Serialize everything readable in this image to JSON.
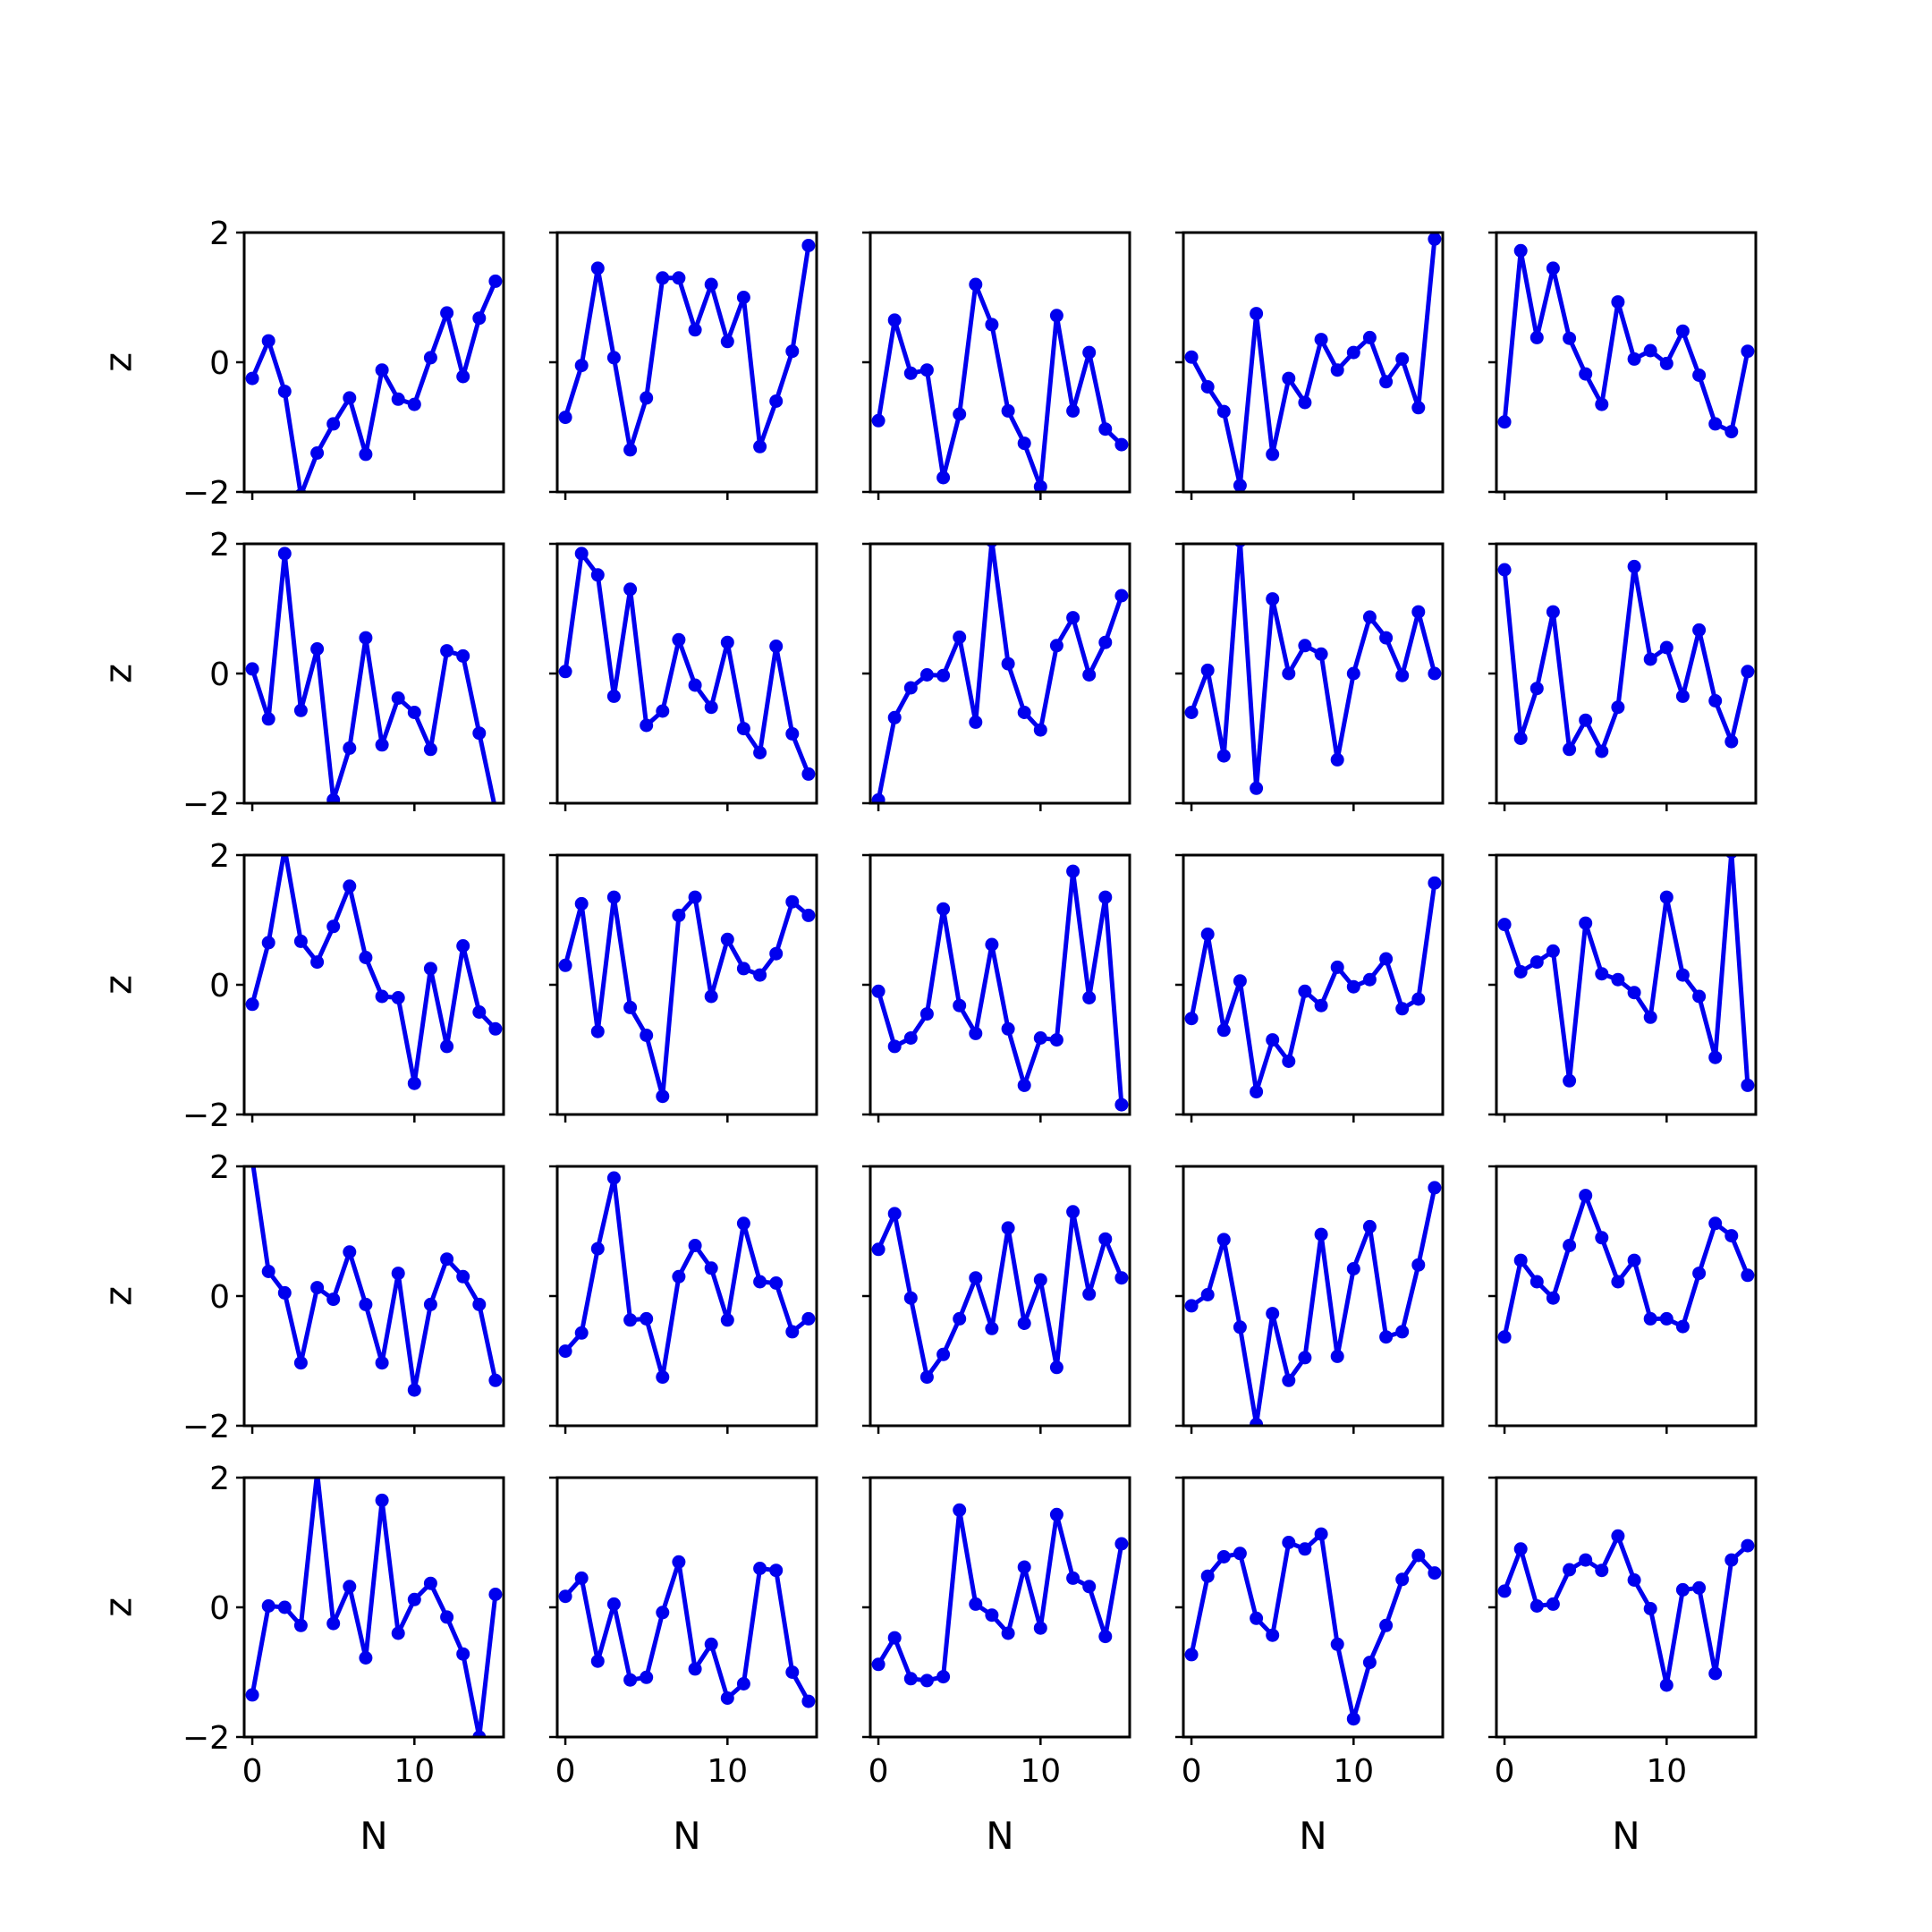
{
  "chart_data": {
    "type": "line",
    "layout": "5x5 grid of subplots sharing x and y axes",
    "xlabel": "N",
    "ylabel": "z",
    "x": [
      0,
      1,
      2,
      3,
      4,
      5,
      6,
      7,
      8,
      9,
      10,
      11,
      12,
      13,
      14,
      15
    ],
    "xlim": [
      -0.5,
      15.5
    ],
    "ylim": [
      -2,
      2
    ],
    "xticks": [
      0,
      10
    ],
    "xtick_labels": [
      "0",
      "10"
    ],
    "yticks": [
      -2,
      0,
      2
    ],
    "ytick_labels": [
      "−2",
      "0",
      "2"
    ],
    "grid": false,
    "legend": "none",
    "color": "#0000ee",
    "marker": "circle",
    "panels": [
      {
        "row": 1,
        "col": 1,
        "values": [
          -0.25,
          0.33,
          -0.45,
          -2.05,
          -1.4,
          -0.95,
          -0.55,
          -1.42,
          -0.12,
          -0.57,
          -0.65,
          0.07,
          0.76,
          -0.22,
          0.68,
          1.25
        ]
      },
      {
        "row": 1,
        "col": 2,
        "values": [
          -0.85,
          -0.05,
          1.45,
          0.07,
          -1.35,
          -0.55,
          1.3,
          1.3,
          0.5,
          1.2,
          0.32,
          1.0,
          -1.3,
          -0.6,
          0.17,
          1.8
        ]
      },
      {
        "row": 1,
        "col": 3,
        "values": [
          -0.9,
          0.65,
          -0.17,
          -0.12,
          -1.78,
          -0.8,
          1.2,
          0.58,
          -0.75,
          -1.25,
          -1.92,
          0.72,
          -0.75,
          0.15,
          -1.03,
          -1.27
        ]
      },
      {
        "row": 1,
        "col": 4,
        "values": [
          0.08,
          -0.38,
          -0.76,
          -1.9,
          0.75,
          -1.42,
          -0.25,
          -0.62,
          0.35,
          -0.12,
          0.15,
          0.38,
          -0.3,
          0.05,
          -0.7,
          1.9
        ]
      },
      {
        "row": 1,
        "col": 5,
        "values": [
          -0.92,
          1.72,
          0.38,
          1.45,
          0.37,
          -0.18,
          -0.65,
          0.93,
          0.05,
          0.18,
          -0.02,
          0.48,
          -0.2,
          -0.95,
          -1.07,
          0.17
        ]
      },
      {
        "row": 2,
        "col": 1,
        "values": [
          0.07,
          -0.7,
          1.85,
          -0.57,
          0.38,
          -1.95,
          -1.15,
          0.55,
          -1.1,
          -0.38,
          -0.6,
          -1.17,
          0.35,
          0.27,
          -0.92,
          -2.1
        ]
      },
      {
        "row": 2,
        "col": 2,
        "values": [
          0.03,
          1.85,
          1.52,
          -0.35,
          1.3,
          -0.8,
          -0.58,
          0.52,
          -0.18,
          -0.52,
          0.48,
          -0.85,
          -1.22,
          0.42,
          -0.93,
          -1.55
        ]
      },
      {
        "row": 2,
        "col": 3,
        "values": [
          -1.95,
          -0.68,
          -0.22,
          -0.02,
          -0.03,
          0.56,
          -0.75,
          2.05,
          0.15,
          -0.6,
          -0.87,
          0.43,
          0.86,
          -0.02,
          0.48,
          1.2
        ]
      },
      {
        "row": 2,
        "col": 4,
        "values": [
          -0.6,
          0.05,
          -1.27,
          2.05,
          -1.77,
          1.15,
          0.0,
          0.43,
          0.3,
          -1.33,
          0.0,
          0.87,
          0.55,
          -0.03,
          0.95,
          0.0
        ]
      },
      {
        "row": 2,
        "col": 5,
        "values": [
          1.6,
          -1.0,
          -0.23,
          0.95,
          -1.17,
          -0.72,
          -1.2,
          -0.52,
          1.65,
          0.22,
          0.4,
          -0.35,
          0.67,
          -0.42,
          -1.05,
          0.03
        ]
      },
      {
        "row": 3,
        "col": 1,
        "values": [
          -0.3,
          0.65,
          2.1,
          0.67,
          0.35,
          0.9,
          1.52,
          0.42,
          -0.18,
          -0.2,
          -1.52,
          0.25,
          -0.95,
          0.6,
          -0.42,
          -0.68
        ]
      },
      {
        "row": 3,
        "col": 2,
        "values": [
          0.3,
          1.25,
          -0.72,
          1.35,
          -0.35,
          -0.78,
          -1.72,
          1.07,
          1.35,
          -0.18,
          0.7,
          0.25,
          0.15,
          0.48,
          1.28,
          1.07
        ]
      },
      {
        "row": 3,
        "col": 3,
        "values": [
          -0.1,
          -0.95,
          -0.82,
          -0.45,
          1.17,
          -0.32,
          -0.75,
          0.62,
          -0.68,
          -1.55,
          -0.82,
          -0.85,
          1.75,
          -0.2,
          1.35,
          -1.85
        ]
      },
      {
        "row": 3,
        "col": 4,
        "values": [
          -0.52,
          0.78,
          -0.7,
          0.06,
          -1.65,
          -0.85,
          -1.18,
          -0.1,
          -0.32,
          0.27,
          -0.03,
          0.08,
          0.4,
          -0.37,
          -0.22,
          1.57
        ]
      },
      {
        "row": 3,
        "col": 5,
        "values": [
          0.93,
          0.2,
          0.35,
          0.52,
          -1.48,
          0.95,
          0.17,
          0.08,
          -0.12,
          -0.5,
          1.35,
          0.15,
          -0.18,
          -1.12,
          2.05,
          -1.55
        ]
      },
      {
        "row": 4,
        "col": 1,
        "values": [
          2.1,
          0.38,
          0.05,
          -1.03,
          0.13,
          -0.05,
          0.68,
          -0.13,
          -1.03,
          0.35,
          -1.45,
          -0.13,
          0.57,
          0.3,
          -0.13,
          -1.3
        ]
      },
      {
        "row": 4,
        "col": 2,
        "values": [
          -0.85,
          -0.57,
          0.73,
          1.82,
          -0.37,
          -0.35,
          -1.25,
          0.3,
          0.78,
          0.43,
          -0.37,
          1.12,
          0.22,
          0.2,
          -0.55,
          -0.35
        ]
      },
      {
        "row": 4,
        "col": 3,
        "values": [
          0.72,
          1.27,
          -0.03,
          -1.25,
          -0.9,
          -0.35,
          0.28,
          -0.5,
          1.05,
          -0.42,
          0.25,
          -1.1,
          1.3,
          0.03,
          0.88,
          0.28
        ]
      },
      {
        "row": 4,
        "col": 4,
        "values": [
          -0.15,
          0.02,
          0.87,
          -0.48,
          -1.98,
          -0.27,
          -1.3,
          -0.95,
          0.95,
          -0.93,
          0.42,
          1.07,
          -0.63,
          -0.55,
          0.48,
          1.67
        ]
      },
      {
        "row": 4,
        "col": 5,
        "values": [
          -0.63,
          0.55,
          0.22,
          -0.03,
          0.78,
          1.55,
          0.9,
          0.22,
          0.55,
          -0.35,
          -0.35,
          -0.47,
          0.35,
          1.12,
          0.93,
          0.32
        ]
      },
      {
        "row": 5,
        "col": 1,
        "values": [
          -1.35,
          0.02,
          0.0,
          -0.28,
          2.08,
          -0.25,
          0.32,
          -0.78,
          1.65,
          -0.4,
          0.12,
          0.37,
          -0.15,
          -0.72,
          -2.0,
          0.2
        ]
      },
      {
        "row": 5,
        "col": 2,
        "values": [
          0.17,
          0.45,
          -0.83,
          0.05,
          -1.12,
          -1.08,
          -0.08,
          0.7,
          -0.95,
          -0.57,
          -1.4,
          -1.18,
          0.6,
          0.57,
          -1.0,
          -1.45
        ]
      },
      {
        "row": 5,
        "col": 3,
        "values": [
          -0.88,
          -0.47,
          -1.1,
          -1.13,
          -1.07,
          1.5,
          0.05,
          -0.12,
          -0.4,
          0.62,
          -0.32,
          1.43,
          0.45,
          0.32,
          -0.45,
          0.98
        ]
      },
      {
        "row": 5,
        "col": 4,
        "values": [
          -0.73,
          0.48,
          0.78,
          0.83,
          -0.17,
          -0.43,
          1.0,
          0.9,
          1.13,
          -0.57,
          -1.72,
          -0.85,
          -0.28,
          0.43,
          0.8,
          0.53
        ]
      },
      {
        "row": 5,
        "col": 5,
        "values": [
          0.25,
          0.9,
          0.02,
          0.05,
          0.58,
          0.73,
          0.57,
          1.1,
          0.42,
          -0.02,
          -1.2,
          0.27,
          0.3,
          -1.02,
          0.73,
          0.95
        ]
      }
    ]
  }
}
